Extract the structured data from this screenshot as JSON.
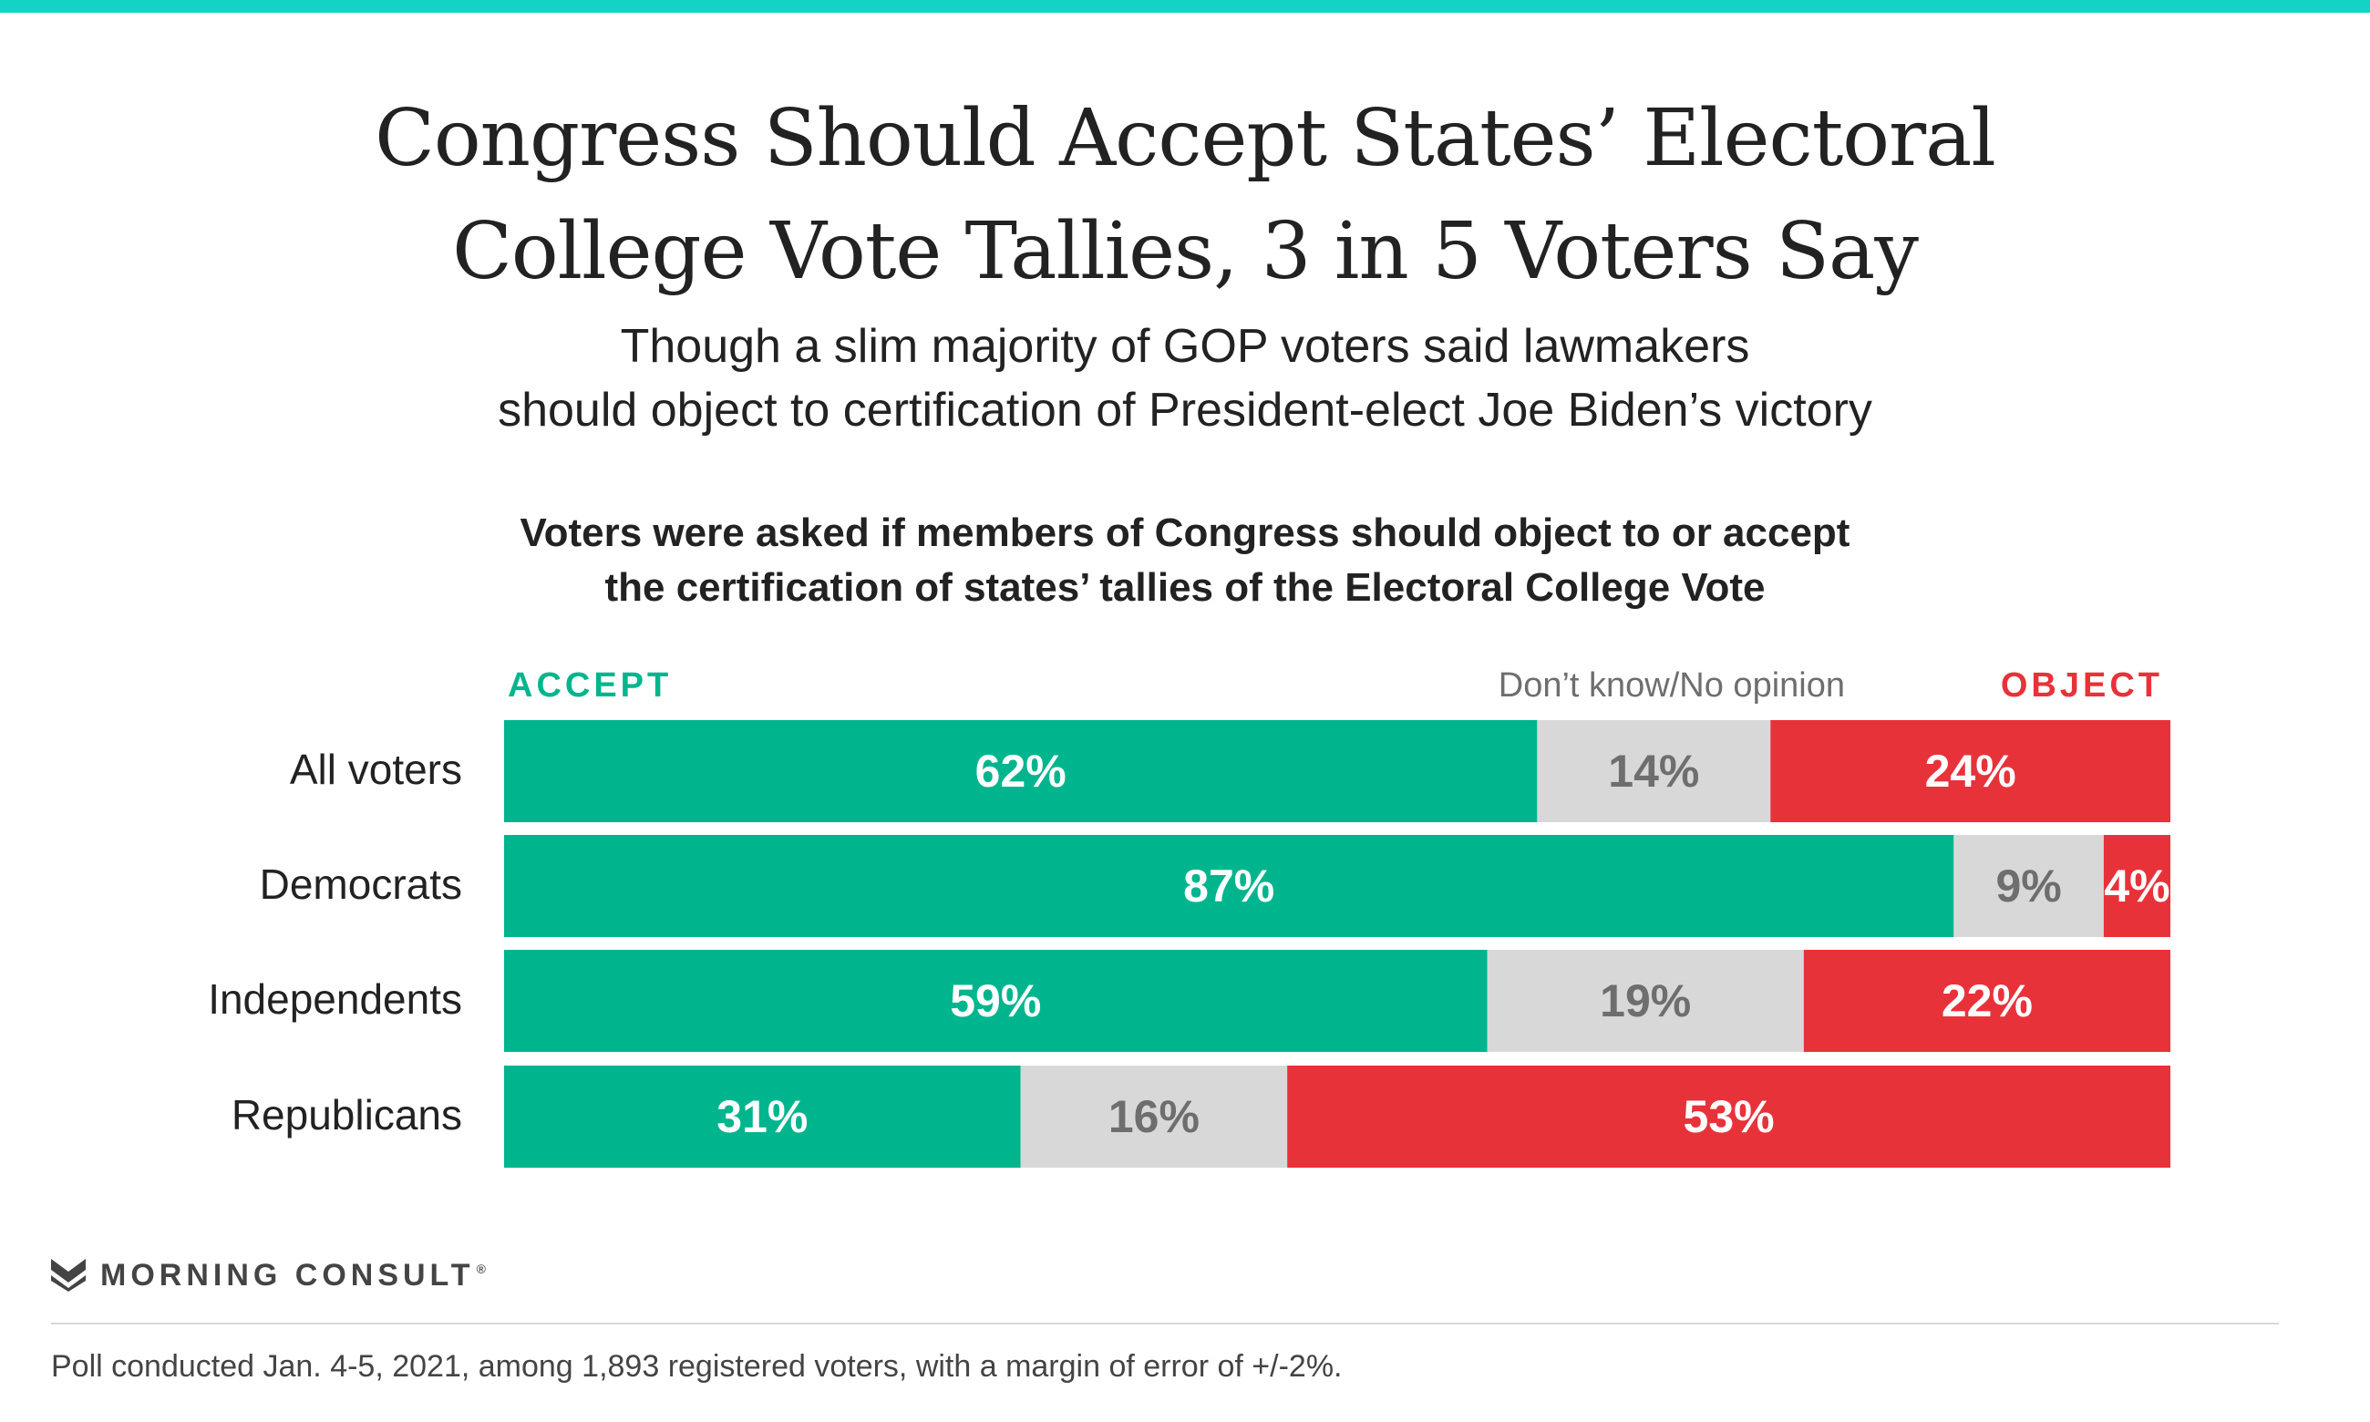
{
  "colors": {
    "accent_rule": "#13d3c6",
    "accept": "#00b58e",
    "dont_know": "#d8d8d8",
    "object": "#e8323a",
    "dont_know_label": "#6e6e6e"
  },
  "title_lines": [
    "Congress Should Accept States’ Electoral",
    "College Vote Tallies, 3 in 5 Voters Say"
  ],
  "subtitle_lines": [
    "Though a slim majority of GOP voters said lawmakers",
    "should object to certification of President-elect Joe Biden’s victory"
  ],
  "question_lines": [
    "Voters were asked if members of Congress should object to or accept",
    "the certification of states’ tallies of the Electoral College Vote"
  ],
  "chart_data": {
    "type": "bar",
    "orientation": "horizontal",
    "stacked": true,
    "percent_scale": [
      0,
      100
    ],
    "categories": [
      "All voters",
      "Democrats",
      "Independents",
      "Republicans"
    ],
    "series": [
      {
        "name": "ACCEPT",
        "values": [
          62,
          87,
          59,
          31
        ],
        "labels": [
          "62%",
          "87%",
          "59%",
          "31%"
        ],
        "color": "#00b58e"
      },
      {
        "name": "Don’t know/No opinion",
        "values": [
          14,
          9,
          19,
          16
        ],
        "labels": [
          "14%",
          "9%",
          "19%",
          "16%"
        ],
        "color": "#d8d8d8"
      },
      {
        "name": "OBJECT",
        "values": [
          24,
          4,
          22,
          53
        ],
        "labels": [
          "24%",
          "4%",
          "22%",
          "53%"
        ],
        "color": "#e8323a"
      }
    ],
    "legend_placement": "top, above bars",
    "grid": false
  },
  "brand": {
    "name": "MORNING CONSULT",
    "mark": "®",
    "logo_icon": "morning-consult-m-logo"
  },
  "footnote": "Poll conducted Jan. 4-5, 2021, among 1,893 registered voters, with a margin of error of +/-2%."
}
